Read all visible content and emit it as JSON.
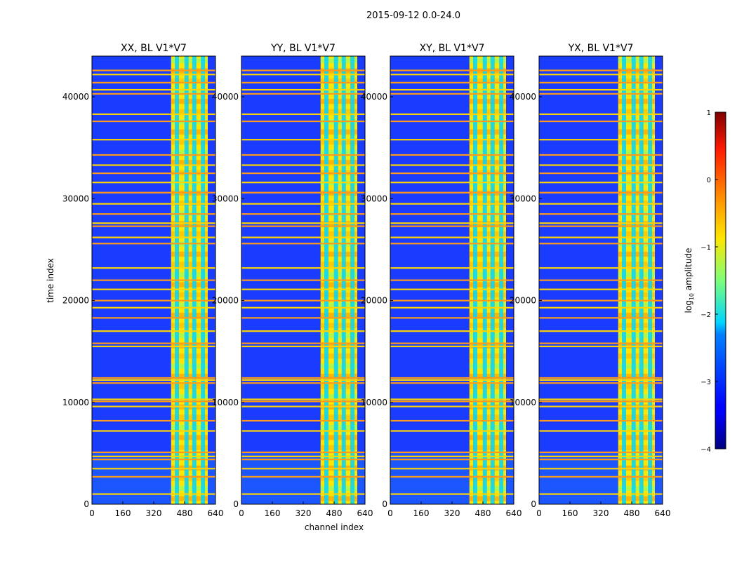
{
  "figure": {
    "suptitle": "2015-09-12 0.0-24.0",
    "xlabel": "channel index",
    "ylabel": "time index"
  },
  "chart_data": {
    "type": "heatmap",
    "title": "2015-09-12 0.0-24.0",
    "xlabel": "channel index",
    "ylabel": "time index",
    "xlim": [
      0,
      640
    ],
    "ylim": [
      0,
      44000
    ],
    "x_ticks": [
      0,
      160,
      320,
      480,
      640
    ],
    "y_ticks": [
      0,
      10000,
      20000,
      30000,
      40000
    ],
    "panels": [
      {
        "name": "xx",
        "title": "XX, BL V1*V7"
      },
      {
        "name": "yy",
        "title": "YY, BL V1*V7"
      },
      {
        "name": "xy",
        "title": "XY, BL V1*V7"
      },
      {
        "name": "yx",
        "title": "YX, BL V1*V7"
      }
    ],
    "signal_band_channels": [
      410,
      600
    ],
    "bright_column_channels": [
      440,
      490,
      530,
      575
    ],
    "bright_row_times": [
      1000,
      2700,
      3500,
      4400,
      4700,
      5100,
      7200,
      8200,
      9600,
      10100,
      10300,
      11900,
      12200,
      12400,
      15500,
      15800,
      17000,
      18300,
      19300,
      20000,
      21100,
      22000,
      23200,
      25600,
      26200,
      27300,
      27600,
      28500,
      29500,
      30600,
      31600,
      32500,
      33300,
      34300,
      35800,
      37600,
      38300,
      40300,
      40700,
      41400,
      42200,
      42600
    ],
    "colorbar": {
      "label_prefix": "log",
      "label_sub": "10",
      "label_suffix": " amplitude",
      "range": [
        -4,
        1
      ],
      "ticks": [
        1,
        0,
        -1,
        -2,
        -3,
        -4
      ],
      "colormap": "jet"
    }
  }
}
